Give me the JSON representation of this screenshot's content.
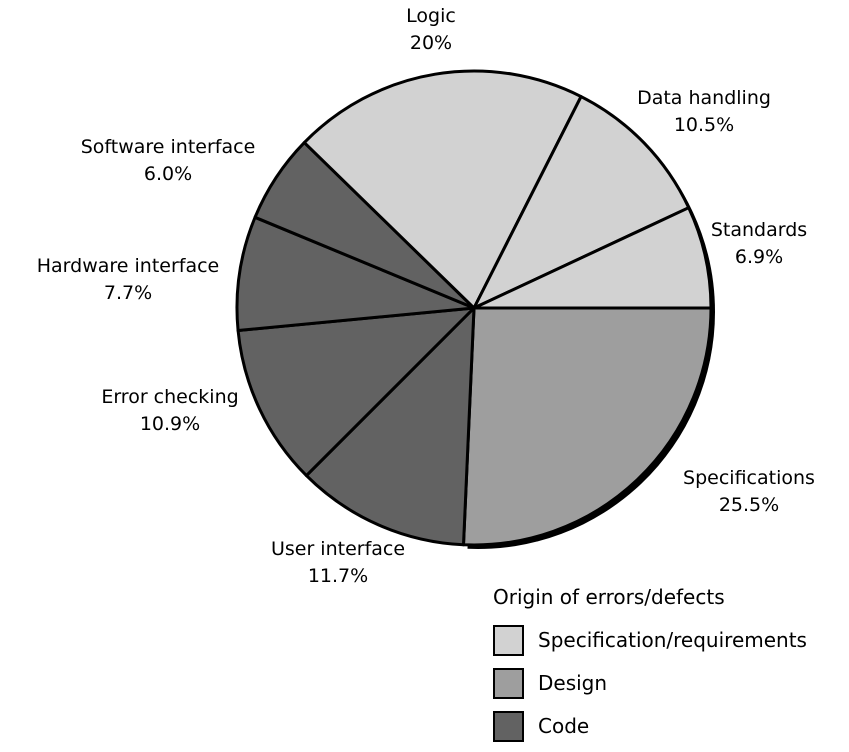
{
  "chart_data": {
    "type": "pie",
    "start_angle_deg": 90,
    "direction": "clockwise",
    "slices": [
      {
        "label": "Specifications",
        "pct_label": "25.5%",
        "value": 25.5,
        "group": "Design"
      },
      {
        "label": "User interface",
        "pct_label": "11.7%",
        "value": 11.7,
        "group": "Code"
      },
      {
        "label": "Error checking",
        "pct_label": "10.9%",
        "value": 10.9,
        "group": "Code"
      },
      {
        "label": "Hardware interface",
        "pct_label": "7.7%",
        "value": 7.7,
        "group": "Code"
      },
      {
        "label": "Software interface",
        "pct_label": "6.0%",
        "value": 6.0,
        "group": "Code"
      },
      {
        "label": "Logic",
        "pct_label": "20%",
        "value": 20,
        "group": "Specification/requirements"
      },
      {
        "label": "Data handling",
        "pct_label": "10.5%",
        "value": 10.5,
        "group": "Specification/requirements"
      },
      {
        "label": "Standards",
        "pct_label": "6.9%",
        "value": 6.9,
        "group": "Specification/requirements"
      }
    ],
    "legend": {
      "title": "Origin of errors/defects",
      "placement": "bottom-right",
      "items": [
        {
          "name": "Specification/requirements",
          "color": "#d2d2d2"
        },
        {
          "name": "Design",
          "color": "#9e9e9e"
        },
        {
          "name": "Code",
          "color": "#626262"
        }
      ]
    }
  }
}
